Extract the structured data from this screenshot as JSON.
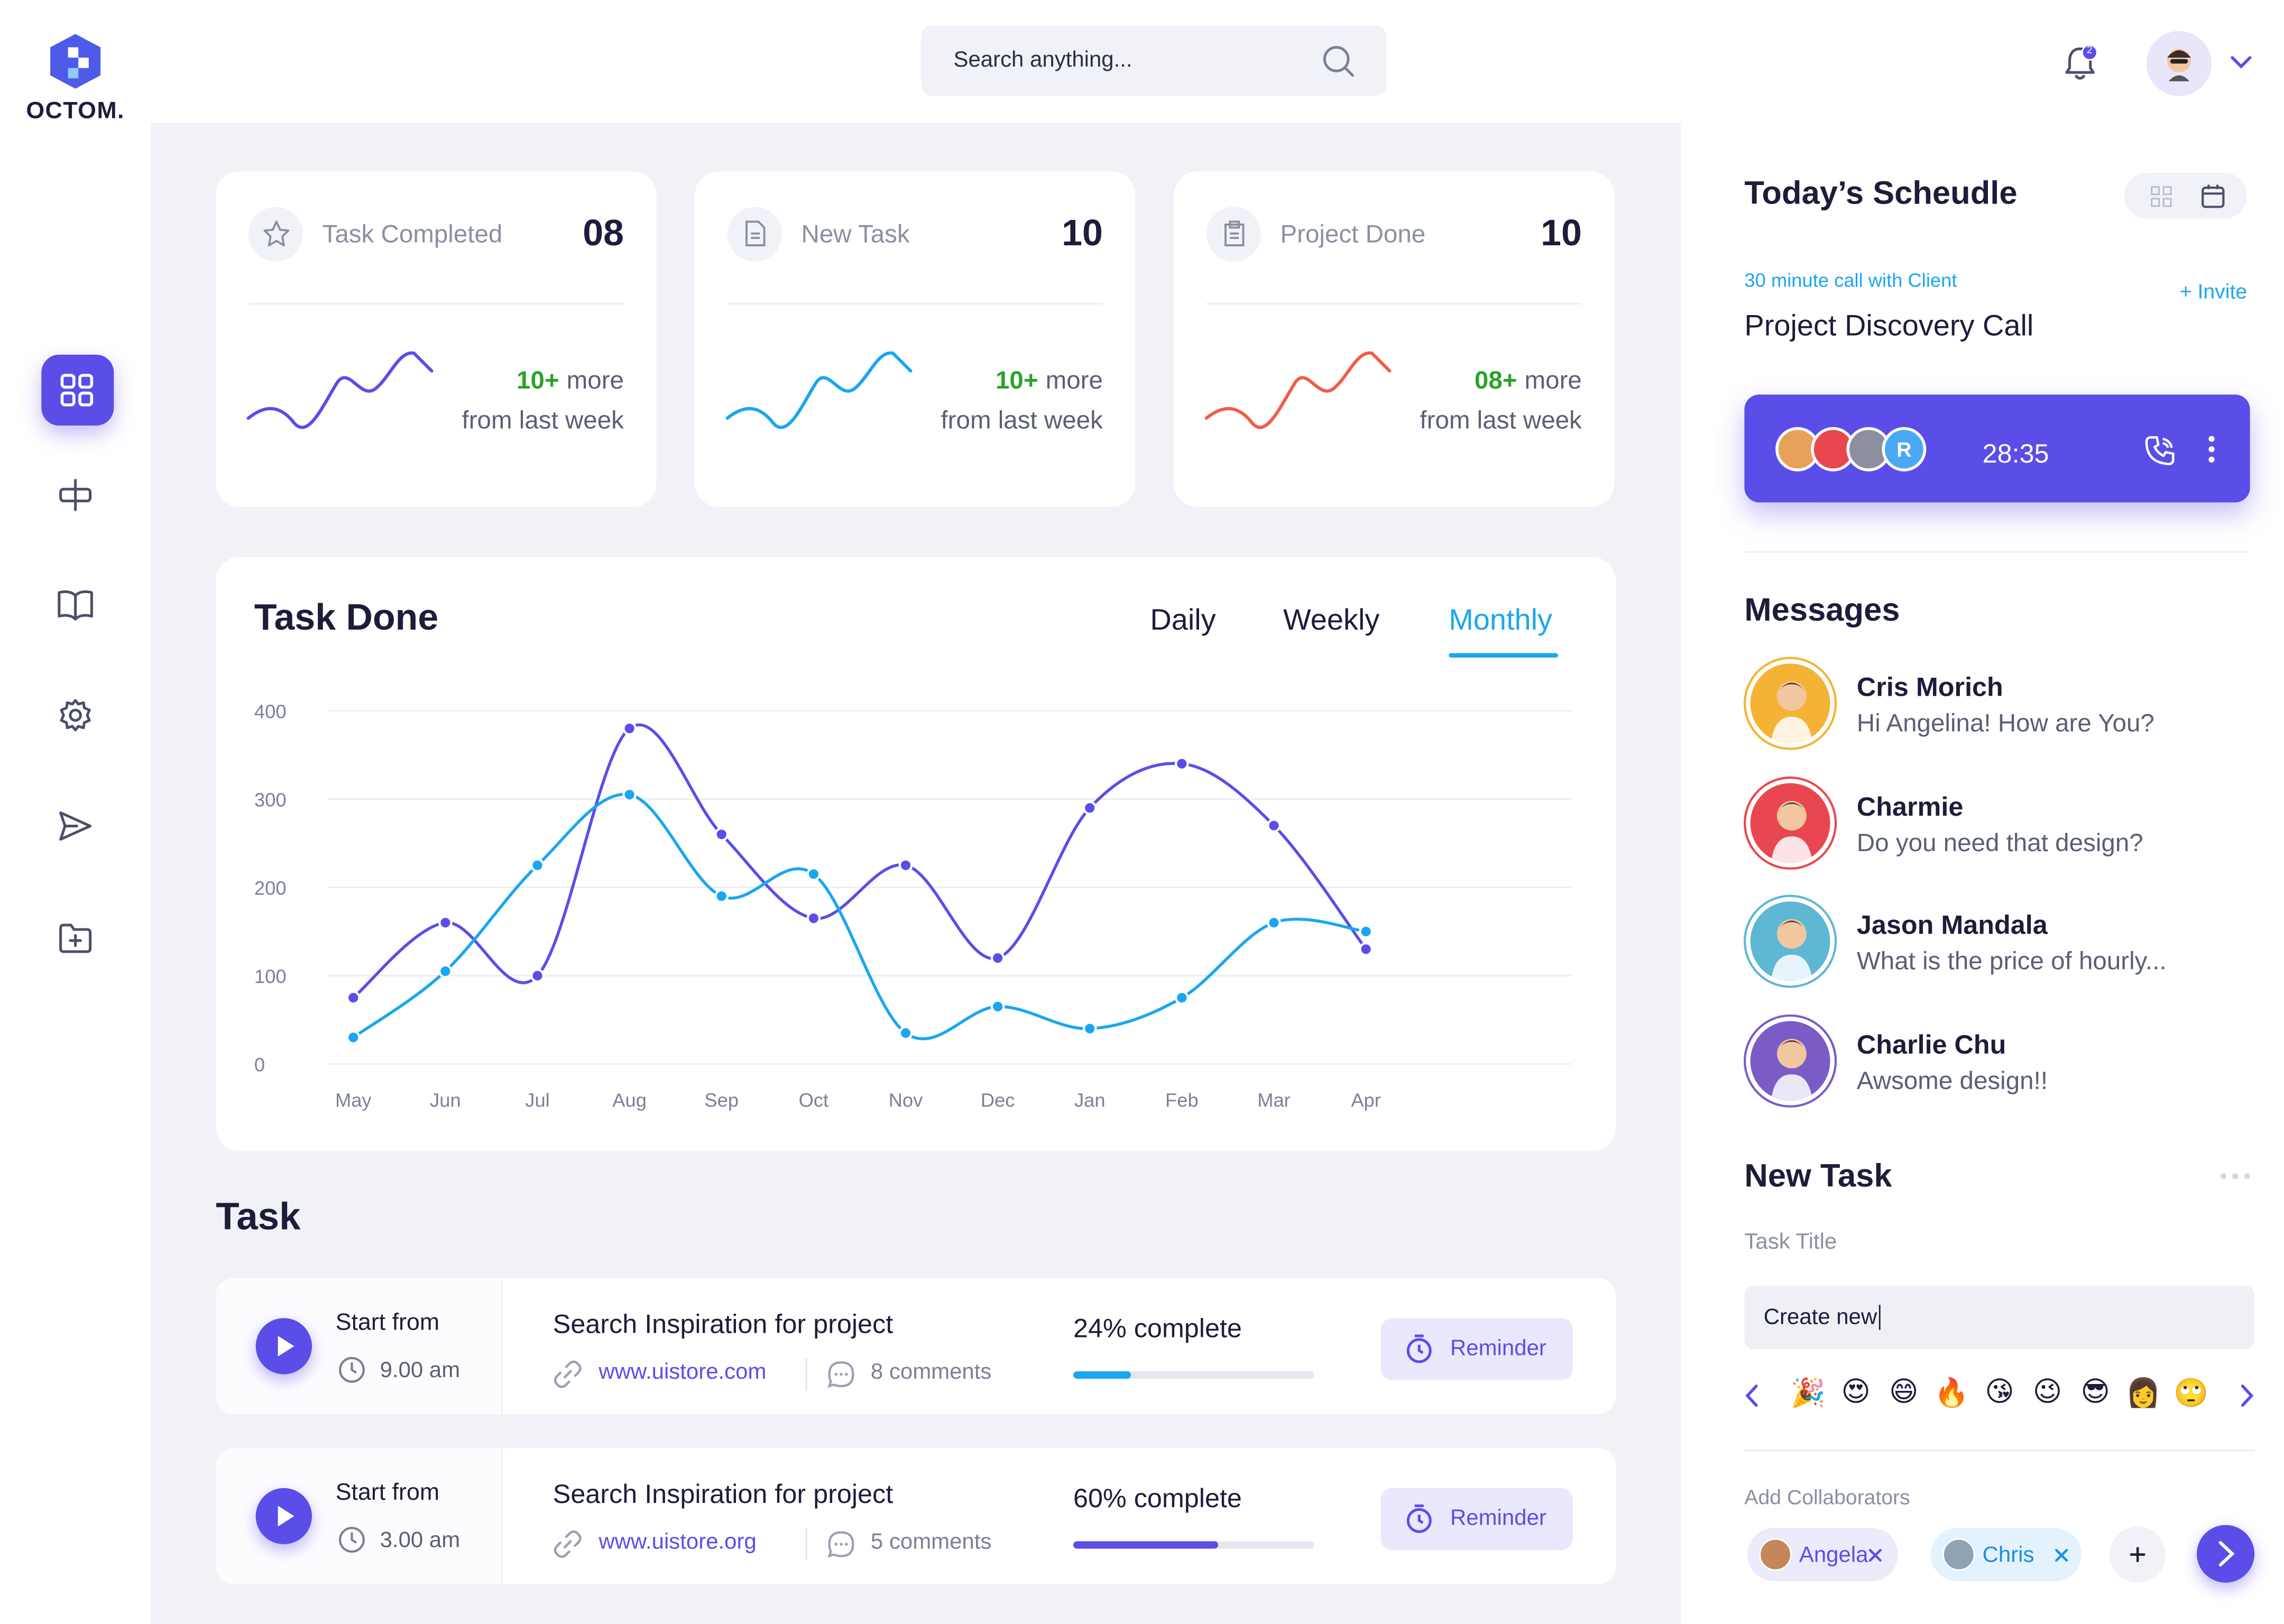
{
  "brand": "OCTOM.",
  "search": {
    "placeholder": "Search anything..."
  },
  "notifications": "2",
  "stats": [
    {
      "label": "Task Completed",
      "value": "08",
      "change": "10+",
      "change_suffix": "more",
      "period": "from last week",
      "color": "#5b4de8"
    },
    {
      "label": "New Task",
      "value": "10",
      "change": "10+",
      "change_suffix": "more",
      "period": "from last week",
      "color": "#1aa6f0"
    },
    {
      "label": "Project Done",
      "value": "10",
      "change": "08+",
      "change_suffix": "more",
      "period": "from last week",
      "color": "#f25c47"
    }
  ],
  "task_done": {
    "title": "Task Done",
    "tabs": [
      "Daily",
      "Weekly",
      "Monthly"
    ],
    "active_tab": 2,
    "categories": [
      "May",
      "Jun",
      "Jul",
      "Aug",
      "Sep",
      "Oct",
      "Nov",
      "Dec",
      "Jan",
      "Feb",
      "Mar",
      "Apr"
    ],
    "ylim": [
      0,
      400
    ],
    "yticks": [
      0,
      100,
      200,
      300,
      400
    ],
    "series": [
      {
        "color": "#5b4de8",
        "values": [
          75,
          160,
          100,
          380,
          260,
          165,
          225,
          120,
          290,
          340,
          270,
          130
        ]
      },
      {
        "color": "#1aa6f0",
        "values": [
          30,
          105,
          225,
          305,
          190,
          215,
          35,
          65,
          40,
          75,
          160,
          150
        ]
      }
    ]
  },
  "tasks": {
    "title": "Task",
    "items": [
      {
        "start_label": "Start from",
        "time": "9.00 am",
        "title": "Search Inspiration for project",
        "link": "www.uistore.com",
        "comments": "8 comments",
        "progress": 24,
        "progress_label": "24% complete",
        "progress_color": "#1aa6f0",
        "button": "Reminder"
      },
      {
        "start_label": "Start from",
        "time": "3.00 am",
        "title": "Search Inspiration for project",
        "link": "www.uistore.org",
        "comments": "5 comments",
        "progress": 60,
        "progress_label": "60% complete",
        "progress_color": "#5b4de8",
        "button": "Reminder"
      }
    ]
  },
  "schedule": {
    "title": "Today’s Scheudle",
    "subtitle": "30 minute call with Client",
    "invite": "+ Invite",
    "event": "Project Discovery Call",
    "call_initial": "R",
    "timer": "28:35"
  },
  "messages": {
    "title": "Messages",
    "items": [
      {
        "name": "Cris Morich",
        "text": "Hi Angelina! How are You?",
        "avatar_color": "#f5b335"
      },
      {
        "name": "Charmie",
        "text": "Do you need that design?",
        "avatar_color": "#e8474f"
      },
      {
        "name": "Jason Mandala",
        "text": "What is the price of hourly...",
        "avatar_color": "#5fb7d6"
      },
      {
        "name": "Charlie Chu",
        "text": "Awsome design!!",
        "avatar_color": "#7a5cc7"
      }
    ]
  },
  "new_task": {
    "title": "New Task",
    "field_label": "Task Title",
    "input": "Create new",
    "emojis": [
      "🎉",
      "😍",
      "😄",
      "🔥",
      "😘",
      "😉",
      "😎",
      "👩",
      "🙄"
    ],
    "collaborators_label": "Add Collaborators",
    "collaborators": [
      "Angela",
      "Chris"
    ]
  }
}
